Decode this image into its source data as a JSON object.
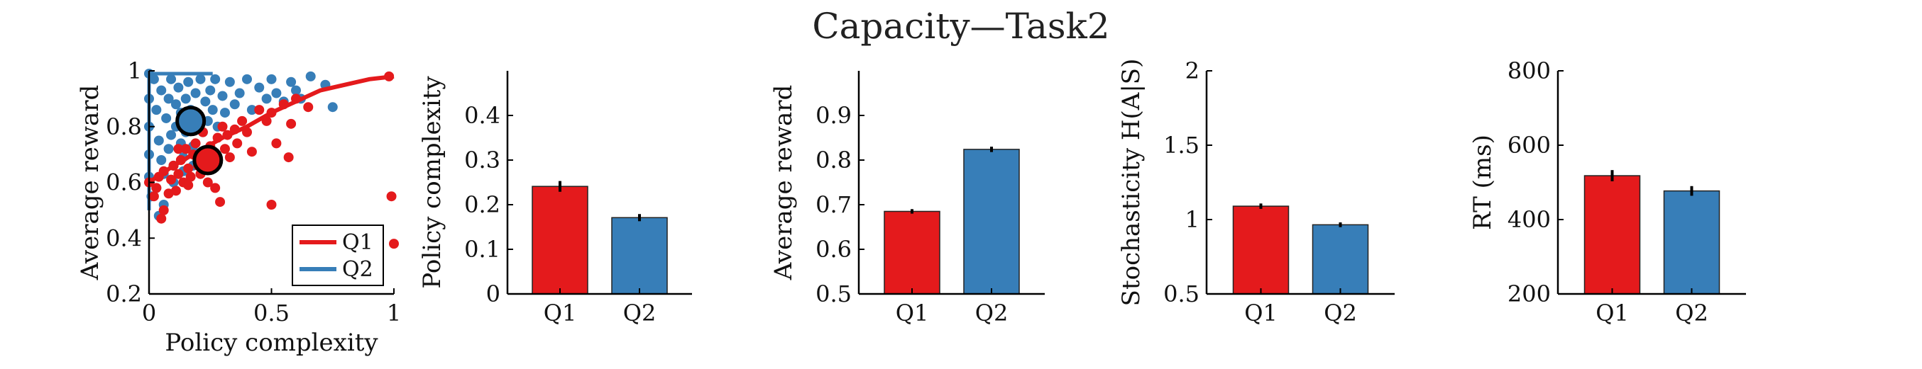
{
  "figure": {
    "title": "Capacity—Task2"
  },
  "colors": {
    "Q1": "#e41a1c",
    "Q2": "#377eb8",
    "axis": "#000000"
  },
  "chart_data": [
    {
      "type": "scatter",
      "xlabel": "Policy complexity",
      "ylabel": "Average reward",
      "xlim": [
        0,
        1
      ],
      "ylim": [
        0.2,
        1
      ],
      "xticks": [
        {
          "value": 0,
          "label": "0"
        },
        {
          "value": 0.5,
          "label": "0.5"
        },
        {
          "value": 1,
          "label": "1"
        }
      ],
      "yticks": [
        {
          "value": 0.2,
          "label": "0.2"
        },
        {
          "value": 0.4,
          "label": "0.4"
        },
        {
          "value": 0.6,
          "label": "0.6"
        },
        {
          "value": 0.8,
          "label": "0.8"
        },
        {
          "value": 1,
          "label": "1"
        }
      ],
      "legend": {
        "placement": "bottom-right",
        "entries": [
          "Q1",
          "Q2"
        ]
      },
      "series": [
        {
          "name": "Q1",
          "color": "#e41a1c",
          "points": [
            [
              0.0,
              0.6
            ],
            [
              0.02,
              0.55
            ],
            [
              0.03,
              0.58
            ],
            [
              0.04,
              0.62
            ],
            [
              0.05,
              0.47
            ],
            [
              0.06,
              0.5
            ],
            [
              0.06,
              0.64
            ],
            [
              0.08,
              0.56
            ],
            [
              0.09,
              0.61
            ],
            [
              0.1,
              0.66
            ],
            [
              0.11,
              0.57
            ],
            [
              0.12,
              0.63
            ],
            [
              0.13,
              0.68
            ],
            [
              0.14,
              0.6
            ],
            [
              0.15,
              0.72
            ],
            [
              0.16,
              0.65
            ],
            [
              0.17,
              0.62
            ],
            [
              0.18,
              0.7
            ],
            [
              0.19,
              0.74
            ],
            [
              0.2,
              0.66
            ],
            [
              0.21,
              0.63
            ],
            [
              0.22,
              0.78
            ],
            [
              0.23,
              0.7
            ],
            [
              0.24,
              0.6
            ],
            [
              0.25,
              0.73
            ],
            [
              0.26,
              0.68
            ],
            [
              0.27,
              0.58
            ],
            [
              0.28,
              0.76
            ],
            [
              0.29,
              0.53
            ],
            [
              0.3,
              0.8
            ],
            [
              0.31,
              0.72
            ],
            [
              0.32,
              0.77
            ],
            [
              0.33,
              0.69
            ],
            [
              0.35,
              0.79
            ],
            [
              0.36,
              0.74
            ],
            [
              0.38,
              0.82
            ],
            [
              0.4,
              0.78
            ],
            [
              0.42,
              0.71
            ],
            [
              0.45,
              0.86
            ],
            [
              0.48,
              0.82
            ],
            [
              0.5,
              0.85
            ],
            [
              0.52,
              0.74
            ],
            [
              0.55,
              0.88
            ],
            [
              0.58,
              0.81
            ],
            [
              0.6,
              0.9
            ],
            [
              0.65,
              0.87
            ],
            [
              0.12,
              0.72
            ],
            [
              0.16,
              0.59
            ],
            [
              0.2,
              0.82
            ],
            [
              0.5,
              0.52
            ],
            [
              0.57,
              0.69
            ],
            [
              0.98,
              0.98
            ],
            [
              0.99,
              0.55
            ],
            [
              1.0,
              0.38
            ]
          ],
          "fit": [
            [
              0.0,
              0.6
            ],
            [
              0.1,
              0.66
            ],
            [
              0.2,
              0.71
            ],
            [
              0.3,
              0.76
            ],
            [
              0.4,
              0.8
            ],
            [
              0.5,
              0.85
            ],
            [
              0.6,
              0.89
            ],
            [
              0.7,
              0.93
            ],
            [
              0.8,
              0.95
            ],
            [
              0.9,
              0.97
            ],
            [
              1.0,
              0.98
            ]
          ],
          "mean": [
            0.24,
            0.68
          ]
        },
        {
          "name": "Q2",
          "color": "#377eb8",
          "points": [
            [
              0.0,
              0.99
            ],
            [
              0.0,
              0.9
            ],
            [
              0.0,
              0.8
            ],
            [
              0.0,
              0.7
            ],
            [
              0.0,
              0.62
            ],
            [
              0.01,
              0.55
            ],
            [
              0.02,
              0.97
            ],
            [
              0.03,
              0.86
            ],
            [
              0.03,
              0.58
            ],
            [
              0.04,
              0.75
            ],
            [
              0.05,
              0.68
            ],
            [
              0.05,
              0.93
            ],
            [
              0.06,
              0.63
            ],
            [
              0.07,
              0.83
            ],
            [
              0.08,
              0.9
            ],
            [
              0.08,
              0.72
            ],
            [
              0.09,
              0.97
            ],
            [
              0.1,
              0.66
            ],
            [
              0.11,
              0.8
            ],
            [
              0.11,
              0.88
            ],
            [
              0.12,
              0.94
            ],
            [
              0.13,
              0.74
            ],
            [
              0.13,
              0.85
            ],
            [
              0.14,
              0.69
            ],
            [
              0.15,
              0.9
            ],
            [
              0.15,
              0.78
            ],
            [
              0.16,
              0.96
            ],
            [
              0.17,
              0.86
            ],
            [
              0.18,
              0.73
            ],
            [
              0.19,
              0.92
            ],
            [
              0.2,
              0.84
            ],
            [
              0.21,
              0.97
            ],
            [
              0.22,
              0.78
            ],
            [
              0.23,
              0.89
            ],
            [
              0.24,
              0.82
            ],
            [
              0.25,
              0.93
            ],
            [
              0.26,
              0.86
            ],
            [
              0.27,
              0.97
            ],
            [
              0.28,
              0.8
            ],
            [
              0.3,
              0.91
            ],
            [
              0.31,
              0.85
            ],
            [
              0.33,
              0.96
            ],
            [
              0.35,
              0.88
            ],
            [
              0.37,
              0.92
            ],
            [
              0.4,
              0.97
            ],
            [
              0.42,
              0.86
            ],
            [
              0.45,
              0.94
            ],
            [
              0.48,
              0.9
            ],
            [
              0.5,
              0.97
            ],
            [
              0.52,
              0.92
            ],
            [
              0.55,
              0.89
            ],
            [
              0.58,
              0.96
            ],
            [
              0.6,
              0.93
            ],
            [
              0.62,
              0.9
            ],
            [
              0.66,
              0.98
            ],
            [
              0.72,
              0.95
            ],
            [
              0.75,
              0.87
            ],
            [
              0.1,
              0.6
            ],
            [
              0.14,
              0.64
            ],
            [
              0.06,
              0.52
            ],
            [
              0.04,
              0.48
            ],
            [
              0.18,
              0.66
            ],
            [
              0.09,
              0.77
            ]
          ],
          "hline": {
            "y": 0.99,
            "x": [
              0.0,
              0.26
            ]
          },
          "vline": {
            "x": 0.0,
            "y": [
              0.5,
              1.0
            ]
          },
          "mean": [
            0.17,
            0.82
          ]
        }
      ]
    },
    {
      "type": "bar",
      "ylabel": "Policy complexity",
      "ylim": [
        0,
        0.5
      ],
      "categories": [
        "Q1",
        "Q2"
      ],
      "values": [
        0.241,
        0.171
      ],
      "errors": [
        0.012,
        0.008
      ],
      "yticks": [
        {
          "value": 0,
          "label": "0"
        },
        {
          "value": 0.1,
          "label": "0.1"
        },
        {
          "value": 0.2,
          "label": "0.2"
        },
        {
          "value": 0.3,
          "label": "0.3"
        },
        {
          "value": 0.4,
          "label": "0.4"
        }
      ]
    },
    {
      "type": "bar",
      "ylabel": "Average reward",
      "ylim": [
        0.5,
        1.0
      ],
      "categories": [
        "Q1",
        "Q2"
      ],
      "values": [
        0.685,
        0.824
      ],
      "errors": [
        0.005,
        0.006
      ],
      "yticks": [
        {
          "value": 0.5,
          "label": "0.5"
        },
        {
          "value": 0.6,
          "label": "0.6"
        },
        {
          "value": 0.7,
          "label": "0.7"
        },
        {
          "value": 0.8,
          "label": "0.8"
        },
        {
          "value": 0.9,
          "label": "0.9"
        }
      ]
    },
    {
      "type": "bar",
      "ylabel": "Stochasticity H(A|S)",
      "ylim": [
        0.5,
        2
      ],
      "categories": [
        "Q1",
        "Q2"
      ],
      "values": [
        1.09,
        0.965
      ],
      "errors": [
        0.018,
        0.016
      ],
      "yticks": [
        {
          "value": 0.5,
          "label": "0.5"
        },
        {
          "value": 1,
          "label": "1"
        },
        {
          "value": 1.5,
          "label": "1.5"
        },
        {
          "value": 2,
          "label": "2"
        }
      ]
    },
    {
      "type": "bar",
      "ylabel": "RT (ms)",
      "ylim": [
        200,
        800
      ],
      "categories": [
        "Q1",
        "Q2"
      ],
      "values": [
        518,
        477
      ],
      "errors": [
        15,
        13
      ],
      "yticks": [
        {
          "value": 200,
          "label": "200"
        },
        {
          "value": 400,
          "label": "400"
        },
        {
          "value": 600,
          "label": "600"
        },
        {
          "value": 800,
          "label": "800"
        }
      ]
    }
  ]
}
